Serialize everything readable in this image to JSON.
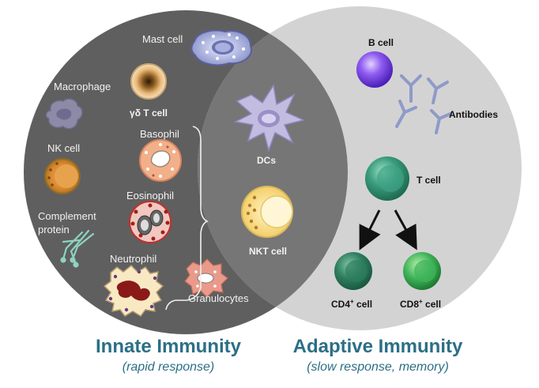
{
  "innate": {
    "title": "Innate Immunity",
    "subtitle": "(rapid response)",
    "labels": {
      "mast_cell": "Mast cell",
      "macrophage": "Macrophage",
      "gamma_delta_t_cell": "γδ T cell",
      "basophil": "Basophil",
      "nk_cell": "NK cell",
      "eosinophil": "Eosinophil",
      "complement_line1": "Complement",
      "complement_line2": "protein",
      "neutrophil": "Neutrophil",
      "granulocytes": "Granulocytes"
    }
  },
  "overlap": {
    "dcs": "DCs",
    "nkt_cell": "NKT cell"
  },
  "adaptive": {
    "title": "Adaptive Immunity",
    "subtitle": "(slow response, memory)",
    "labels": {
      "b_cell": "B cell",
      "antibodies": "Antibodies",
      "t_cell": "T cell",
      "cd4_base": "CD4",
      "cd8_base": "CD8",
      "superscript": "+",
      "cell_suffix": " cell"
    }
  },
  "colors": {
    "innate_circle": "#5f5f5f",
    "adaptive_circle": "#d3d3d3",
    "title_color": "#2b6f86"
  }
}
